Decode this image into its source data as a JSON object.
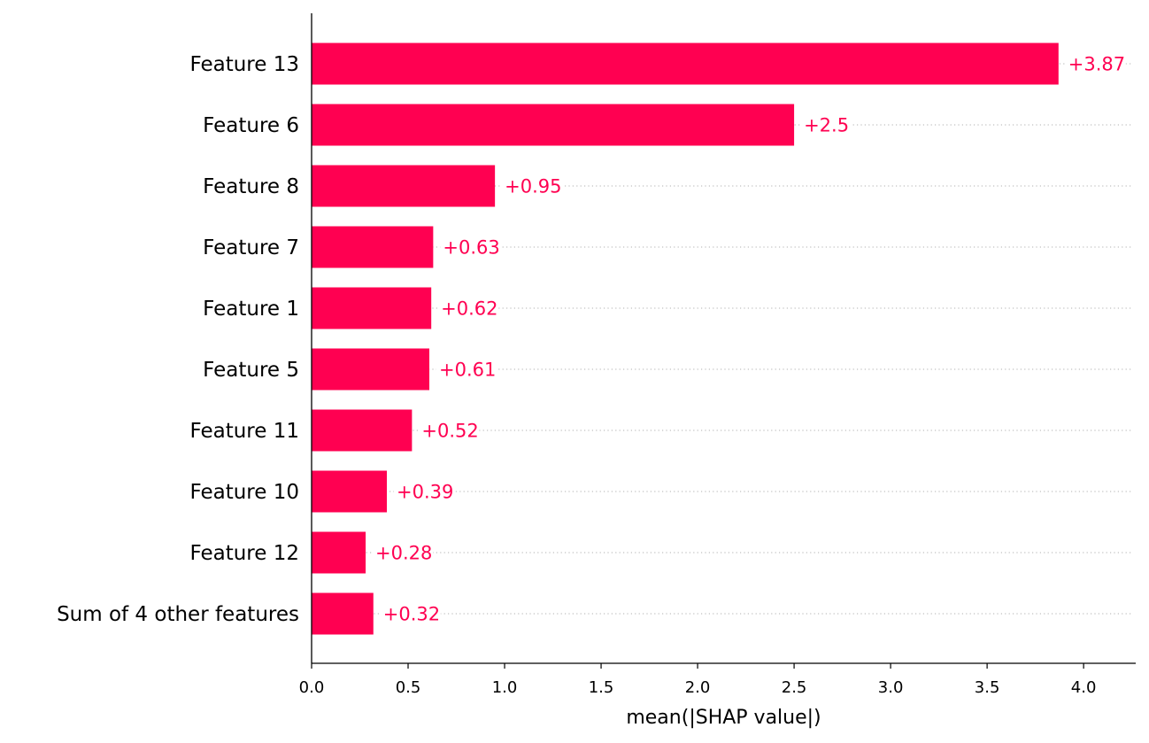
{
  "chart_data": {
    "type": "bar",
    "orientation": "horizontal",
    "categories": [
      "Feature 13",
      "Feature 6",
      "Feature 8",
      "Feature 7",
      "Feature 1",
      "Feature 5",
      "Feature 11",
      "Feature 10",
      "Feature 12",
      "Sum of 4 other features"
    ],
    "values": [
      3.87,
      2.5,
      0.95,
      0.63,
      0.62,
      0.61,
      0.52,
      0.39,
      0.28,
      0.32
    ],
    "value_labels": [
      "+3.87",
      "+2.5",
      "+0.95",
      "+0.63",
      "+0.62",
      "+0.61",
      "+0.52",
      "+0.39",
      "+0.28",
      "+0.32"
    ],
    "xlabel": "mean(|SHAP value|)",
    "ylabel": "",
    "title": "",
    "xlim": [
      0,
      4.27
    ],
    "xticks": [
      0.0,
      0.5,
      1.0,
      1.5,
      2.0,
      2.5,
      3.0,
      3.5,
      4.0
    ],
    "xtick_labels": [
      "0.0",
      "0.5",
      "1.0",
      "1.5",
      "2.0",
      "2.5",
      "3.0",
      "3.5",
      "4.0"
    ],
    "grid": "dotted horizontal guides per bar",
    "bar_color": "#ff0051",
    "label_color": "#ff0051"
  }
}
